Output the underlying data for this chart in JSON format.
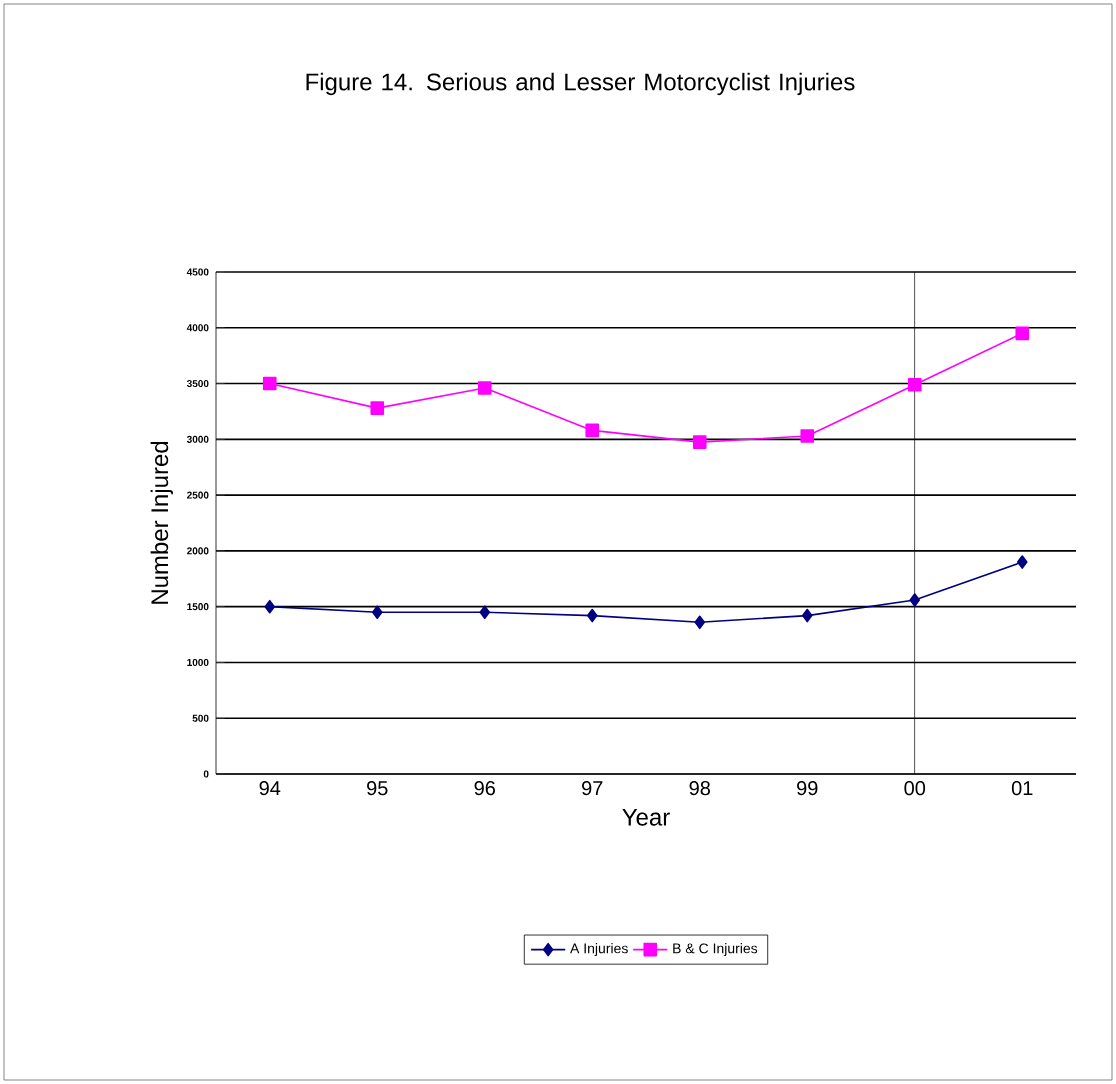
{
  "chart_data": {
    "type": "line",
    "title": "Figure 14. Serious and Lesser Motorcyclist Injuries",
    "xlabel": "Year",
    "ylabel": "Number Injured",
    "categories": [
      "94",
      "95",
      "96",
      "97",
      "98",
      "99",
      "00",
      "01"
    ],
    "series": [
      {
        "name": "A Injuries",
        "color": "#000080",
        "marker": "diamond",
        "values": [
          1500,
          1450,
          1450,
          1420,
          1360,
          1420,
          1560,
          1900
        ]
      },
      {
        "name": "B & C Injuries",
        "color": "#ff00ff",
        "marker": "square",
        "values": [
          3500,
          3280,
          3460,
          3080,
          2975,
          3030,
          3490,
          3950
        ]
      }
    ],
    "ylim": [
      0,
      4500
    ],
    "yticks": [
      0,
      500,
      1000,
      1500,
      2000,
      2500,
      3000,
      3500,
      4000,
      4500
    ],
    "grid": "y",
    "legend": "bottom",
    "ref_lines": [
      {
        "axis": "x",
        "value": "00",
        "color": "#000000"
      }
    ]
  }
}
